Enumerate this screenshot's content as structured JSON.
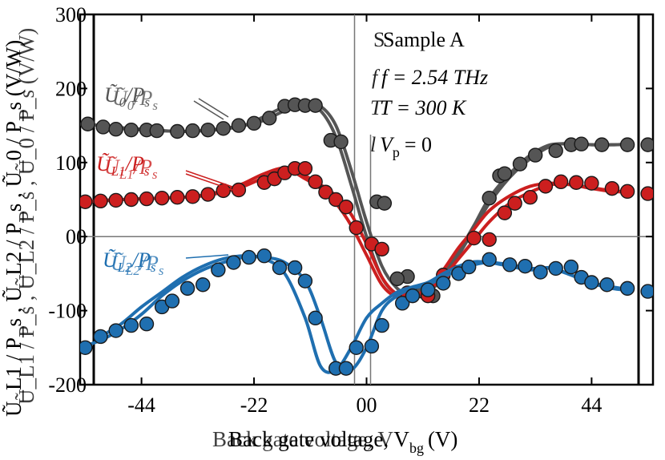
{
  "chart_data": {
    "type": "line",
    "title": "",
    "xlabel": "Back gate voltage, V_bg (V)",
    "ylabel": "Ũ_L1 / P_s , Ũ_L2 / P_s , Ũ_0 / P_s (V/W)",
    "xlim": [
      -56,
      56
    ],
    "ylim": [
      -200,
      300
    ],
    "x_ticks": [
      -44,
      -22,
      0,
      22,
      44
    ],
    "x_tick_labels": [
      "-44",
      "-22",
      "00",
      "22",
      "44"
    ],
    "y_ticks": [
      -200,
      -100,
      0,
      100,
      200,
      300
    ],
    "y_tick_labels": [
      "-200",
      "-100",
      "00",
      "100",
      "200",
      "300"
    ],
    "xlabel_text": "Back gate voltage, V",
    "xlabel_sub": "bg",
    "xlabel_unit": "(V)",
    "ylabel_text": "Ũ_L1 / P_s , Ũ_L2 / P_s , Ũ_0 / P_s (V/W)",
    "reference_lines": {
      "x": 0,
      "y": 0
    },
    "annotations": {
      "sample": "Sample A",
      "freq": "f = 2.54 THz",
      "temp": "T = 300 K",
      "vp": "V",
      "vp_sub": "p",
      "vp_val": "= 0"
    },
    "series": [
      {
        "name": "Ũ0/Ps",
        "label_main": "Ũ",
        "label_sub": "0",
        "label_rest": "/P",
        "label_sub2": "s",
        "color": "#555555",
        "sweeps": [
          {
            "x": [
              -56,
              -52,
              -48,
              -44,
              -40,
              -36,
              -32,
              -28,
              -24,
              -20,
              -16,
              -12,
              -9,
              -6,
              -3,
              0,
              3,
              6,
              9,
              12,
              15,
              18,
              21,
              24,
              28,
              32,
              36,
              40,
              44,
              48,
              52
            ],
            "y": [
              152,
              150,
              146,
              144,
              143,
              142,
              143,
              146,
              150,
              157,
              170,
              178,
              176,
              150,
              90,
              20,
              -40,
              -70,
              -80,
              -75,
              -55,
              -25,
              10,
              45,
              80,
              105,
              122,
              126,
              124,
              124,
              125
            ]
          },
          {
            "x": [
              -52,
              -48,
              -44,
              -40,
              -36,
              -32,
              -28,
              -24,
              -20,
              -16,
              -12,
              -9,
              -6,
              -3,
              0,
              3,
              6,
              9,
              12,
              15,
              18,
              21,
              24,
              28,
              32,
              36,
              40,
              44,
              48,
              52
            ],
            "y": [
              150,
              147,
              145,
              143,
              142,
              143,
              145,
              150,
              162,
              175,
              178,
              170,
              135,
              70,
              0,
              -55,
              -78,
              -82,
              -72,
              -50,
              -20,
              15,
              52,
              85,
              110,
              124,
              125,
              124,
              124,
              125
            ]
          }
        ],
        "markers": [
          {
            "x": -54.5,
            "y": 152
          },
          {
            "x": -51.5,
            "y": 148
          },
          {
            "x": -49,
            "y": 145
          },
          {
            "x": -46,
            "y": 144
          },
          {
            "x": -43,
            "y": 144
          },
          {
            "x": -41,
            "y": 143
          },
          {
            "x": -37,
            "y": 142
          },
          {
            "x": -34,
            "y": 143
          },
          {
            "x": -31,
            "y": 144
          },
          {
            "x": -28,
            "y": 146
          },
          {
            "x": -25,
            "y": 150
          },
          {
            "x": -22,
            "y": 153
          },
          {
            "x": -19,
            "y": 160
          },
          {
            "x": -16,
            "y": 176
          },
          {
            "x": -14,
            "y": 178
          },
          {
            "x": -12,
            "y": 177
          },
          {
            "x": -10,
            "y": 177
          },
          {
            "x": -7,
            "y": 130
          },
          {
            "x": -5,
            "y": 128
          },
          {
            "x": 2,
            "y": 47
          },
          {
            "x": 3.5,
            "y": 45
          },
          {
            "x": 8,
            "y": -54
          },
          {
            "x": 6,
            "y": -57
          },
          {
            "x": 11,
            "y": -74
          },
          {
            "x": 13,
            "y": -80
          },
          {
            "x": 24,
            "y": 52
          },
          {
            "x": 26,
            "y": 82
          },
          {
            "x": 27,
            "y": 85
          },
          {
            "x": 30,
            "y": 98
          },
          {
            "x": 33,
            "y": 110
          },
          {
            "x": 37,
            "y": 116
          },
          {
            "x": 40,
            "y": 124
          },
          {
            "x": 42,
            "y": 125
          },
          {
            "x": 46,
            "y": 124
          },
          {
            "x": 51,
            "y": 124
          },
          {
            "x": 55,
            "y": 124
          }
        ]
      },
      {
        "name": "ŨL1/Ps",
        "label_main": "Ũ",
        "label_sub": "L1",
        "label_rest": "/P",
        "label_sub2": "s",
        "color": "#cc1f1f",
        "sweeps": [
          {
            "x": [
              -56,
              -52,
              -48,
              -44,
              -40,
              -36,
              -32,
              -28,
              -24,
              -20,
              -16,
              -12,
              -9,
              -6,
              -3,
              0,
              3,
              6,
              9,
              12,
              15,
              18,
              21,
              24,
              28,
              32,
              36,
              40,
              44,
              48,
              52
            ],
            "y": [
              47,
              48,
              50,
              51,
              52,
              53,
              55,
              60,
              68,
              80,
              92,
              82,
              70,
              55,
              30,
              -10,
              -55,
              -78,
              -80,
              -72,
              -55,
              -30,
              -5,
              20,
              45,
              60,
              70,
              70,
              66,
              62,
              60
            ]
          },
          {
            "x": [
              -52,
              -48,
              -44,
              -40,
              -36,
              -32,
              -28,
              -24,
              -20,
              -16,
              -12,
              -9,
              -6,
              -3,
              0,
              3,
              6,
              9,
              12,
              15,
              18,
              21,
              24,
              28,
              32,
              36,
              40,
              44,
              48,
              52
            ],
            "y": [
              49,
              50,
              51,
              52,
              53,
              56,
              62,
              72,
              85,
              92,
              78,
              65,
              45,
              15,
              -25,
              -65,
              -82,
              -82,
              -68,
              -45,
              -15,
              10,
              35,
              55,
              68,
              72,
              70,
              65,
              61,
              60
            ]
          }
        ],
        "markers": [
          {
            "x": -55,
            "y": 47
          },
          {
            "x": -52,
            "y": 48
          },
          {
            "x": -49,
            "y": 49
          },
          {
            "x": -46,
            "y": 50
          },
          {
            "x": -43,
            "y": 51
          },
          {
            "x": -40,
            "y": 52
          },
          {
            "x": -37,
            "y": 53
          },
          {
            "x": -34,
            "y": 54
          },
          {
            "x": -31,
            "y": 57
          },
          {
            "x": -28,
            "y": 62
          },
          {
            "x": -25,
            "y": 63
          },
          {
            "x": -20,
            "y": 73
          },
          {
            "x": -18,
            "y": 78
          },
          {
            "x": -16,
            "y": 86
          },
          {
            "x": -14,
            "y": 92
          },
          {
            "x": -12,
            "y": 92
          },
          {
            "x": -10,
            "y": 74
          },
          {
            "x": -8,
            "y": 60
          },
          {
            "x": -6,
            "y": 50
          },
          {
            "x": -4,
            "y": 40
          },
          {
            "x": -2,
            "y": 12
          },
          {
            "x": 1,
            "y": -10
          },
          {
            "x": 3,
            "y": -17
          },
          {
            "x": 8,
            "y": -76
          },
          {
            "x": 12,
            "y": -80
          },
          {
            "x": 15,
            "y": -52
          },
          {
            "x": 18,
            "y": -48
          },
          {
            "x": 21,
            "y": -2
          },
          {
            "x": 24,
            "y": -4
          },
          {
            "x": 27,
            "y": 32
          },
          {
            "x": 29,
            "y": 45
          },
          {
            "x": 32,
            "y": 53
          },
          {
            "x": 35,
            "y": 68
          },
          {
            "x": 38,
            "y": 74
          },
          {
            "x": 41,
            "y": 73
          },
          {
            "x": 44,
            "y": 72
          },
          {
            "x": 48,
            "y": 65
          },
          {
            "x": 51,
            "y": 61
          },
          {
            "x": 55,
            "y": 58
          }
        ]
      },
      {
        "name": "ŨL2/Ps",
        "label_main": "Ũ",
        "label_sub": "L2",
        "label_rest": "/P",
        "label_sub2": "s",
        "color": "#1f6fb0",
        "sweeps": [
          {
            "x": [
              -56,
              -52,
              -48,
              -44,
              -40,
              -36,
              -32,
              -28,
              -24,
              -20,
              -16,
              -12,
              -9,
              -6,
              -3,
              0,
              3,
              6,
              9,
              12,
              15,
              18,
              21,
              24,
              28,
              32,
              36,
              40,
              44,
              48,
              52
            ],
            "y": [
              -150,
              -140,
              -125,
              -105,
              -80,
              -60,
              -45,
              -35,
              -28,
              -28,
              -35,
              -60,
              -110,
              -170,
              -180,
              -150,
              -100,
              -80,
              -70,
              -65,
              -55,
              -45,
              -38,
              -35,
              -38,
              -43,
              -43,
              -52,
              -62,
              -68,
              -72
            ]
          },
          {
            "x": [
              -52,
              -48,
              -44,
              -40,
              -36,
              -32,
              -28,
              -24,
              -20,
              -16,
              -12,
              -9,
              -6,
              -3,
              0,
              3,
              6,
              9,
              12,
              15,
              18,
              21,
              24,
              28,
              32,
              36,
              40,
              44,
              48,
              52
            ],
            "y": [
              -135,
              -118,
              -95,
              -75,
              -55,
              -40,
              -30,
              -26,
              -30,
              -50,
              -110,
              -175,
              -180,
              -150,
              -110,
              -90,
              -75,
              -68,
              -62,
              -50,
              -40,
              -34,
              -35,
              -40,
              -45,
              -42,
              -52,
              -63,
              -70,
              -73
            ]
          }
        ],
        "markers": [
          {
            "x": -55,
            "y": -150
          },
          {
            "x": -52,
            "y": -135
          },
          {
            "x": -49,
            "y": -127
          },
          {
            "x": -46,
            "y": -120
          },
          {
            "x": -43,
            "y": -118
          },
          {
            "x": -40,
            "y": -95
          },
          {
            "x": -38,
            "y": -87
          },
          {
            "x": -35,
            "y": -70
          },
          {
            "x": -32,
            "y": -65
          },
          {
            "x": -29,
            "y": -45
          },
          {
            "x": -26,
            "y": -35
          },
          {
            "x": -23,
            "y": -28
          },
          {
            "x": -20,
            "y": -26
          },
          {
            "x": -17,
            "y": -42
          },
          {
            "x": -14,
            "y": -42
          },
          {
            "x": -12,
            "y": -60
          },
          {
            "x": -10,
            "y": -110
          },
          {
            "x": -6,
            "y": -178
          },
          {
            "x": -4,
            "y": -178
          },
          {
            "x": -2,
            "y": -150
          },
          {
            "x": 1,
            "y": -148
          },
          {
            "x": 3,
            "y": -120
          },
          {
            "x": 7,
            "y": -90
          },
          {
            "x": 9,
            "y": -80
          },
          {
            "x": 12,
            "y": -72
          },
          {
            "x": 15,
            "y": -63
          },
          {
            "x": 18,
            "y": -50
          },
          {
            "x": 20,
            "y": -41
          },
          {
            "x": 24,
            "y": -31
          },
          {
            "x": 28,
            "y": -38
          },
          {
            "x": 31,
            "y": -40
          },
          {
            "x": 34,
            "y": -48
          },
          {
            "x": 37,
            "y": -43
          },
          {
            "x": 40,
            "y": -41
          },
          {
            "x": 42,
            "y": -55
          },
          {
            "x": 44,
            "y": -62
          },
          {
            "x": 47,
            "y": -65
          },
          {
            "x": 51,
            "y": -70
          },
          {
            "x": 55,
            "y": -74
          }
        ]
      }
    ]
  }
}
